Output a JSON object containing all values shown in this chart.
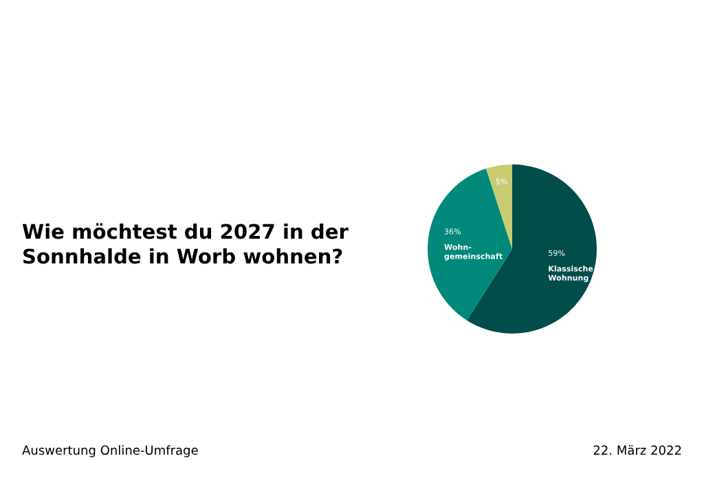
{
  "chart_data": {
    "type": "pie",
    "title": "Wie möchtest du 2027 in der\nSonnhalde in Worb wohnen?",
    "categories": [
      "Klassische\nWohnung",
      "Wohn-\ngemeinschaft",
      null
    ],
    "values": [
      59,
      36,
      5
    ],
    "colors": [
      "#014d4a",
      "#00897a",
      "#c9cc72"
    ],
    "value_labels": [
      "59%",
      "36%",
      "5%"
    ],
    "annotations": [
      "Auswertung Online-Umfrage",
      "22. März 2022"
    ],
    "legend": false
  }
}
